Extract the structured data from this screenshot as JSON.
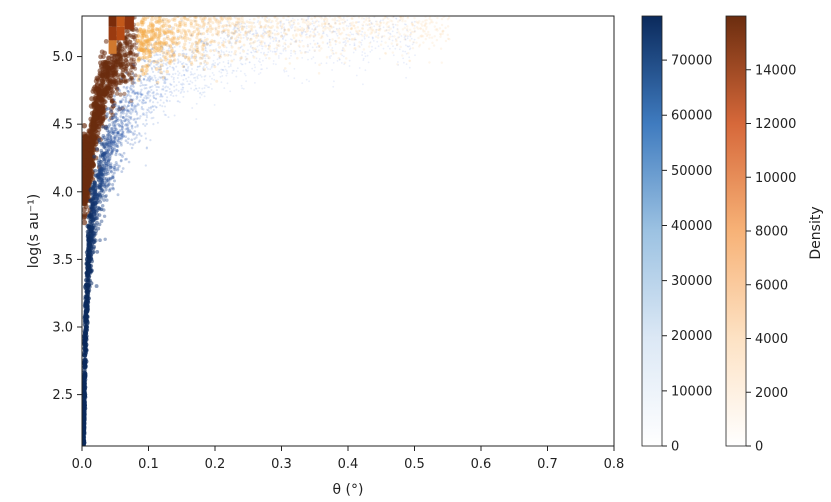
{
  "chart_data": {
    "type": "scatter",
    "title": "",
    "xlabel": "θ (°)",
    "ylabel": "log(s au⁻¹)",
    "xlim": [
      0.0,
      0.8
    ],
    "ylim": [
      2.12,
      5.3
    ],
    "x_ticks": [
      0.0,
      0.1,
      0.2,
      0.3,
      0.4,
      0.5,
      0.6,
      0.7,
      0.8
    ],
    "x_tick_labels": [
      "0.0",
      "0.1",
      "0.2",
      "0.3",
      "0.4",
      "0.5",
      "0.6",
      "0.7",
      "0.8"
    ],
    "y_ticks": [
      2.5,
      3.0,
      3.5,
      4.0,
      4.5,
      5.0
    ],
    "y_tick_labels": [
      "2.5",
      "3.0",
      "3.5",
      "4.0",
      "4.5",
      "5.0"
    ],
    "grid": false,
    "series": [
      {
        "colormap": "Blues",
        "color_low": "#f7fbff",
        "color_mid": "#4f7fdc",
        "color_high": "#0b2a5c",
        "ridge": [
          {
            "x": 0.002,
            "y": 2.15
          },
          {
            "x": 0.005,
            "y": 3.0
          },
          {
            "x": 0.01,
            "y": 3.6
          },
          {
            "x": 0.02,
            "y": 4.0
          },
          {
            "x": 0.04,
            "y": 4.35
          },
          {
            "x": 0.07,
            "y": 4.65
          },
          {
            "x": 0.12,
            "y": 4.9
          },
          {
            "x": 0.2,
            "y": 5.1
          },
          {
            "x": 0.3,
            "y": 5.25
          }
        ]
      },
      {
        "colormap": "Oranges",
        "color_low": "#fff5eb",
        "color_mid": "#f2a43a",
        "color_high": "#6b2d0f",
        "ridge": [
          {
            "x": 0.01,
            "y": 4.2
          },
          {
            "x": 0.02,
            "y": 4.6
          },
          {
            "x": 0.04,
            "y": 4.9
          },
          {
            "x": 0.07,
            "y": 5.1
          },
          {
            "x": 0.12,
            "y": 5.2
          },
          {
            "x": 0.2,
            "y": 5.28
          },
          {
            "x": 0.35,
            "y": 5.3
          }
        ],
        "peak": {
          "x": [
            0.04,
            0.08
          ],
          "y": [
            5.1,
            5.3
          ]
        }
      }
    ],
    "colorbars": [
      {
        "colormap": "Blues",
        "range": [
          0,
          78000
        ],
        "ticks": [
          0,
          10000,
          20000,
          30000,
          40000,
          50000,
          60000,
          70000
        ],
        "tick_labels": [
          "0",
          "10000",
          "20000",
          "30000",
          "40000",
          "50000",
          "60000",
          "70000"
        ],
        "label": ""
      },
      {
        "colormap": "Oranges",
        "range": [
          0,
          16000
        ],
        "ticks": [
          0,
          2000,
          4000,
          6000,
          8000,
          10000,
          12000,
          14000
        ],
        "tick_labels": [
          "0",
          "2000",
          "4000",
          "6000",
          "8000",
          "10000",
          "12000",
          "14000"
        ],
        "label": "Density"
      }
    ]
  }
}
